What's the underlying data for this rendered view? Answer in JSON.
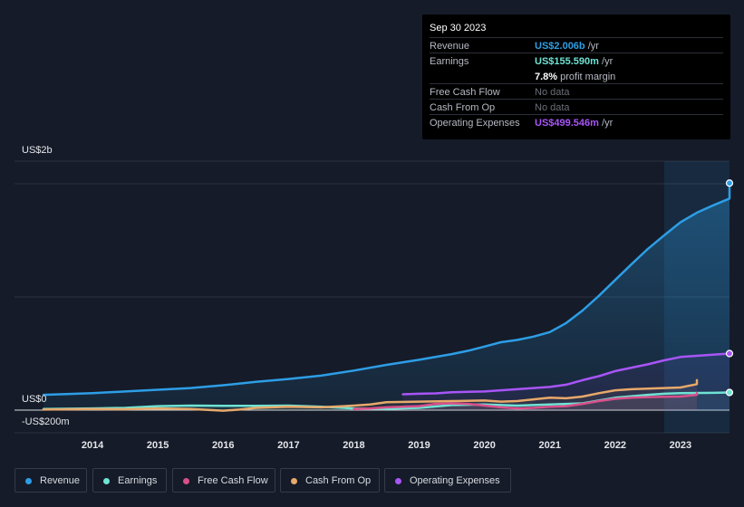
{
  "tooltip": {
    "date": "Sep 30 2023",
    "rows": [
      {
        "label": "Revenue",
        "value": "US$2.006b",
        "unit": "/yr",
        "color": "#2d9ee6"
      },
      {
        "label": "Earnings",
        "value": "US$155.590m",
        "unit": "/yr",
        "color": "#6fe3d4",
        "sub_value": "7.8%",
        "sub_unit": "profit margin"
      },
      {
        "label": "Free Cash Flow",
        "value": "No data"
      },
      {
        "label": "Cash From Op",
        "value": "No data"
      },
      {
        "label": "Operating Expenses",
        "value": "US$499.546m",
        "unit": "/yr",
        "color": "#a855f7"
      }
    ]
  },
  "chart_data": {
    "type": "line",
    "title": "",
    "ylabel_top": "US$2b",
    "ylabel_zero": "US$0",
    "ylabel_bottom": "-US$200m",
    "ylim": [
      -200,
      2200
    ],
    "x_ticks": [
      "2014",
      "2015",
      "2016",
      "2017",
      "2018",
      "2019",
      "2020",
      "2021",
      "2022",
      "2023"
    ],
    "units": "US$m",
    "highlight_from": 2022.75,
    "series": [
      {
        "name": "Revenue",
        "color": "#2d9ee6",
        "area": true,
        "points": [
          [
            2013.25,
            135
          ],
          [
            2013.5,
            140
          ],
          [
            2014.0,
            150
          ],
          [
            2014.5,
            165
          ],
          [
            2015.0,
            180
          ],
          [
            2015.5,
            195
          ],
          [
            2016.0,
            220
          ],
          [
            2016.5,
            250
          ],
          [
            2017.0,
            275
          ],
          [
            2017.5,
            305
          ],
          [
            2018.0,
            350
          ],
          [
            2018.5,
            400
          ],
          [
            2019.0,
            445
          ],
          [
            2019.5,
            495
          ],
          [
            2019.75,
            525
          ],
          [
            2020.0,
            562
          ],
          [
            2020.25,
            600
          ],
          [
            2020.5,
            620
          ],
          [
            2020.75,
            650
          ],
          [
            2021.0,
            690
          ],
          [
            2021.25,
            770
          ],
          [
            2021.5,
            880
          ],
          [
            2021.75,
            1010
          ],
          [
            2022.0,
            1150
          ],
          [
            2022.25,
            1290
          ],
          [
            2022.5,
            1425
          ],
          [
            2022.75,
            1545
          ],
          [
            2023.0,
            1660
          ],
          [
            2023.25,
            1745
          ],
          [
            2023.5,
            1810
          ],
          [
            2023.75,
            1870
          ],
          [
            2023.75,
            2006
          ]
        ]
      },
      {
        "name": "Earnings",
        "color": "#6fe3d4",
        "points": [
          [
            2013.25,
            10
          ],
          [
            2014.0,
            15
          ],
          [
            2014.5,
            20
          ],
          [
            2015.0,
            35
          ],
          [
            2015.5,
            40
          ],
          [
            2016.0,
            38
          ],
          [
            2016.5,
            38
          ],
          [
            2017.0,
            40
          ],
          [
            2017.5,
            30
          ],
          [
            2018.0,
            15
          ],
          [
            2018.5,
            12
          ],
          [
            2019.0,
            20
          ],
          [
            2019.5,
            45
          ],
          [
            2020.0,
            50
          ],
          [
            2020.5,
            40
          ],
          [
            2021.0,
            50
          ],
          [
            2021.5,
            60
          ],
          [
            2022.0,
            110
          ],
          [
            2022.5,
            135
          ],
          [
            2022.75,
            145
          ],
          [
            2023.0,
            150
          ],
          [
            2023.5,
            153
          ],
          [
            2023.75,
            156
          ]
        ]
      },
      {
        "name": "Free Cash Flow",
        "color": "#d94f8a",
        "points": [
          [
            2018.0,
            10
          ],
          [
            2018.25,
            15
          ],
          [
            2018.5,
            25
          ],
          [
            2019.0,
            35
          ],
          [
            2019.25,
            55
          ],
          [
            2019.5,
            60
          ],
          [
            2019.75,
            55
          ],
          [
            2020.0,
            40
          ],
          [
            2020.25,
            25
          ],
          [
            2020.5,
            15
          ],
          [
            2020.75,
            20
          ],
          [
            2021.0,
            30
          ],
          [
            2021.25,
            35
          ],
          [
            2021.5,
            55
          ],
          [
            2021.75,
            80
          ],
          [
            2022.0,
            100
          ],
          [
            2022.25,
            110
          ],
          [
            2022.5,
            115
          ],
          [
            2022.75,
            118
          ],
          [
            2023.0,
            120
          ],
          [
            2023.25,
            135
          ],
          [
            2023.25,
            150
          ]
        ]
      },
      {
        "name": "Cash From Op",
        "color": "#e8a96b",
        "points": [
          [
            2013.25,
            5
          ],
          [
            2014.0,
            10
          ],
          [
            2014.5,
            8
          ],
          [
            2015.0,
            15
          ],
          [
            2015.5,
            10
          ],
          [
            2016.0,
            -5
          ],
          [
            2016.25,
            5
          ],
          [
            2016.5,
            20
          ],
          [
            2017.0,
            30
          ],
          [
            2017.5,
            25
          ],
          [
            2018.0,
            40
          ],
          [
            2018.25,
            50
          ],
          [
            2018.5,
            70
          ],
          [
            2019.0,
            75
          ],
          [
            2019.5,
            80
          ],
          [
            2020.0,
            85
          ],
          [
            2020.25,
            75
          ],
          [
            2020.5,
            80
          ],
          [
            2020.75,
            95
          ],
          [
            2021.0,
            110
          ],
          [
            2021.25,
            105
          ],
          [
            2021.5,
            120
          ],
          [
            2021.75,
            150
          ],
          [
            2022.0,
            175
          ],
          [
            2022.25,
            185
          ],
          [
            2022.5,
            190
          ],
          [
            2022.75,
            195
          ],
          [
            2023.0,
            200
          ],
          [
            2023.25,
            230
          ],
          [
            2023.25,
            265
          ]
        ]
      },
      {
        "name": "Operating Expenses",
        "color": "#a855f7",
        "points": [
          [
            2018.75,
            140
          ],
          [
            2019.0,
            145
          ],
          [
            2019.25,
            148
          ],
          [
            2019.5,
            158
          ],
          [
            2019.75,
            162
          ],
          [
            2020.0,
            165
          ],
          [
            2020.25,
            175
          ],
          [
            2020.5,
            185
          ],
          [
            2020.75,
            195
          ],
          [
            2021.0,
            205
          ],
          [
            2021.25,
            225
          ],
          [
            2021.5,
            265
          ],
          [
            2021.75,
            300
          ],
          [
            2022.0,
            345
          ],
          [
            2022.25,
            375
          ],
          [
            2022.5,
            405
          ],
          [
            2022.75,
            440
          ],
          [
            2023.0,
            470
          ],
          [
            2023.25,
            480
          ],
          [
            2023.5,
            490
          ],
          [
            2023.75,
            500
          ]
        ]
      }
    ]
  },
  "legend": [
    {
      "label": "Revenue",
      "color": "#2d9ee6"
    },
    {
      "label": "Earnings",
      "color": "#6fe3d4"
    },
    {
      "label": "Free Cash Flow",
      "color": "#d94f8a"
    },
    {
      "label": "Cash From Op",
      "color": "#e8a96b"
    },
    {
      "label": "Operating Expenses",
      "color": "#a855f7"
    }
  ]
}
